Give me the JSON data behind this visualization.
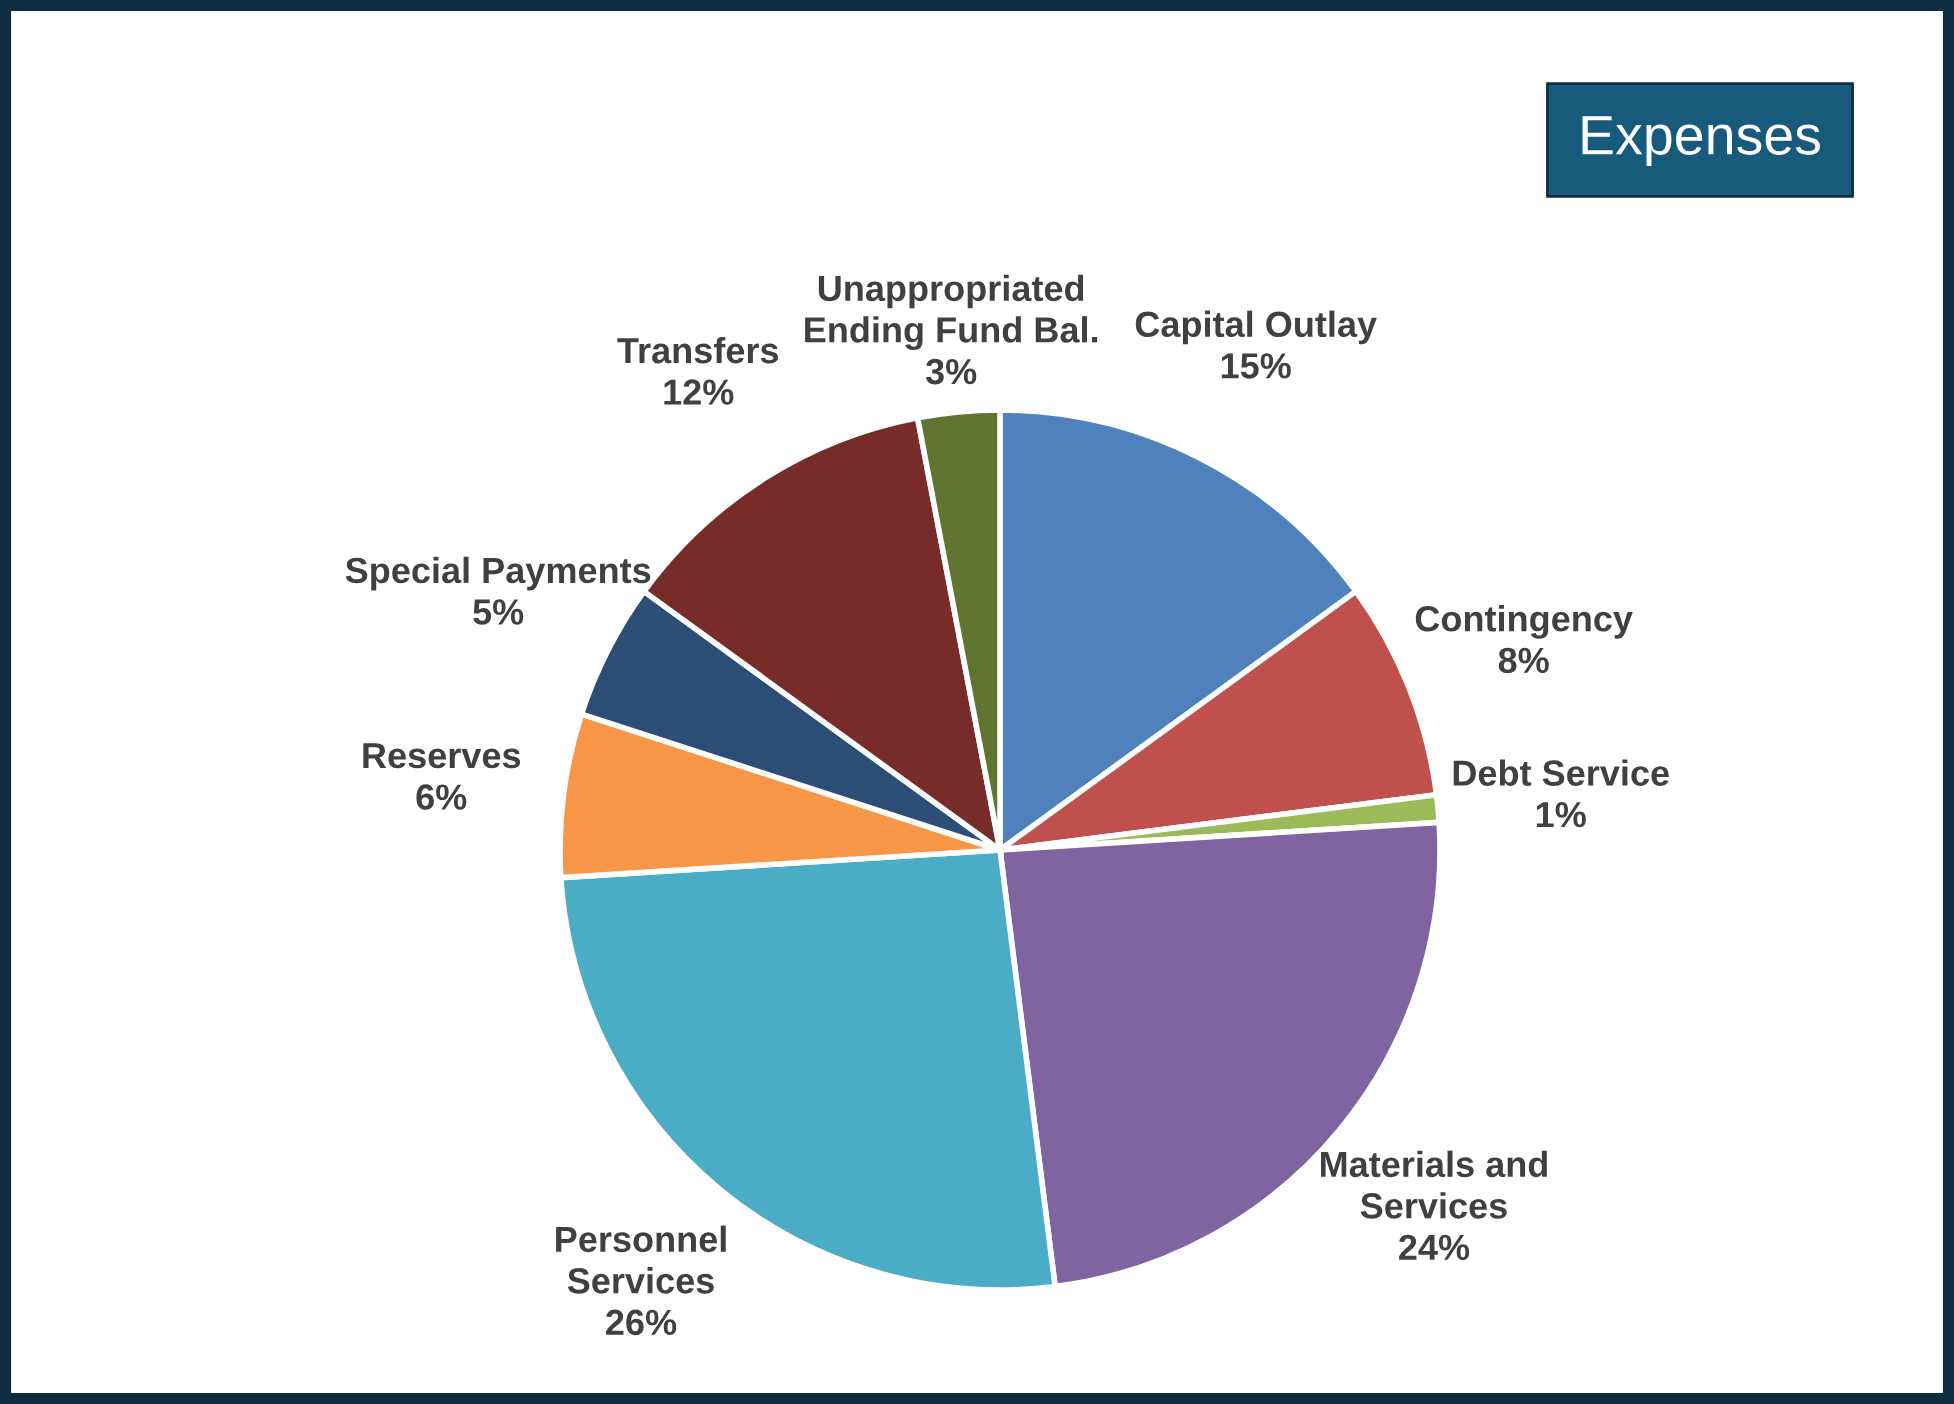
{
  "chart_data": {
    "type": "pie",
    "title": "Expenses",
    "categories": [
      "Capital Outlay",
      "Contingency",
      "Debt Service",
      "Materials and\nServices",
      "Personnel\nServices",
      "Reserves",
      "Special Payments",
      "Transfers",
      "Unappropriated\nEnding Fund Bal."
    ],
    "values": [
      15,
      8,
      1,
      24,
      26,
      6,
      5,
      12,
      3
    ],
    "value_labels": [
      "15%",
      "8%",
      "1%",
      "24%",
      "26%",
      "6%",
      "5%",
      "12%",
      "3%"
    ],
    "colors": [
      "#4f81bd",
      "#c0504d",
      "#9bbb59",
      "#8064a2",
      "#4bacc6",
      "#f79646",
      "#2c4d75",
      "#772c2a",
      "#5f7530"
    ],
    "legend": false
  }
}
